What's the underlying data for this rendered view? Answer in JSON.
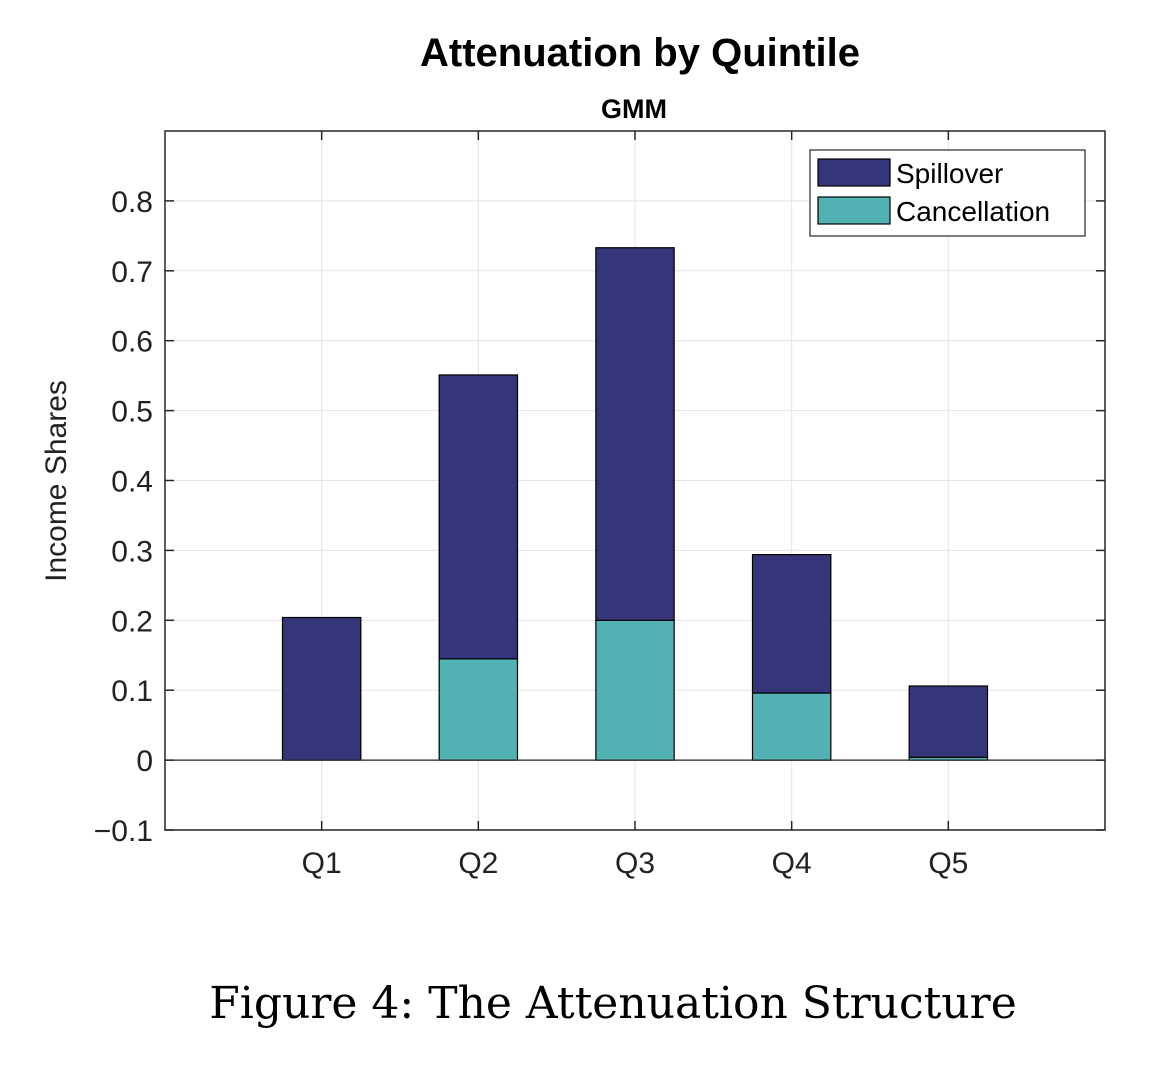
{
  "chart_data": {
    "type": "bar",
    "stacked": true,
    "title": "Attenuation by Quintile",
    "subtitle": "GMM",
    "xlabel": "",
    "ylabel": "Income Shares",
    "categories": [
      "Q1",
      "Q2",
      "Q3",
      "Q4",
      "Q5"
    ],
    "series": [
      {
        "name": "Cancellation",
        "color": "#52b1b2",
        "values": [
          0.0,
          0.145,
          0.2,
          0.096,
          0.004
        ]
      },
      {
        "name": "Spillover",
        "color": "#343679",
        "values": [
          0.204,
          0.406,
          0.533,
          0.198,
          0.102
        ]
      }
    ],
    "legend_order": [
      "Spillover",
      "Cancellation"
    ],
    "legend_position": "top-right",
    "ylim": [
      -0.1,
      0.9
    ],
    "yticks": [
      -0.1,
      0,
      0.1,
      0.2,
      0.3,
      0.4,
      0.5,
      0.6,
      0.7,
      0.8
    ],
    "ytick_labels": [
      "−0.1",
      "0",
      "0.1",
      "0.2",
      "0.3",
      "0.4",
      "0.5",
      "0.6",
      "0.7",
      "0.8"
    ],
    "grid": true
  },
  "caption": "Figure 4: The Attenuation Structure"
}
